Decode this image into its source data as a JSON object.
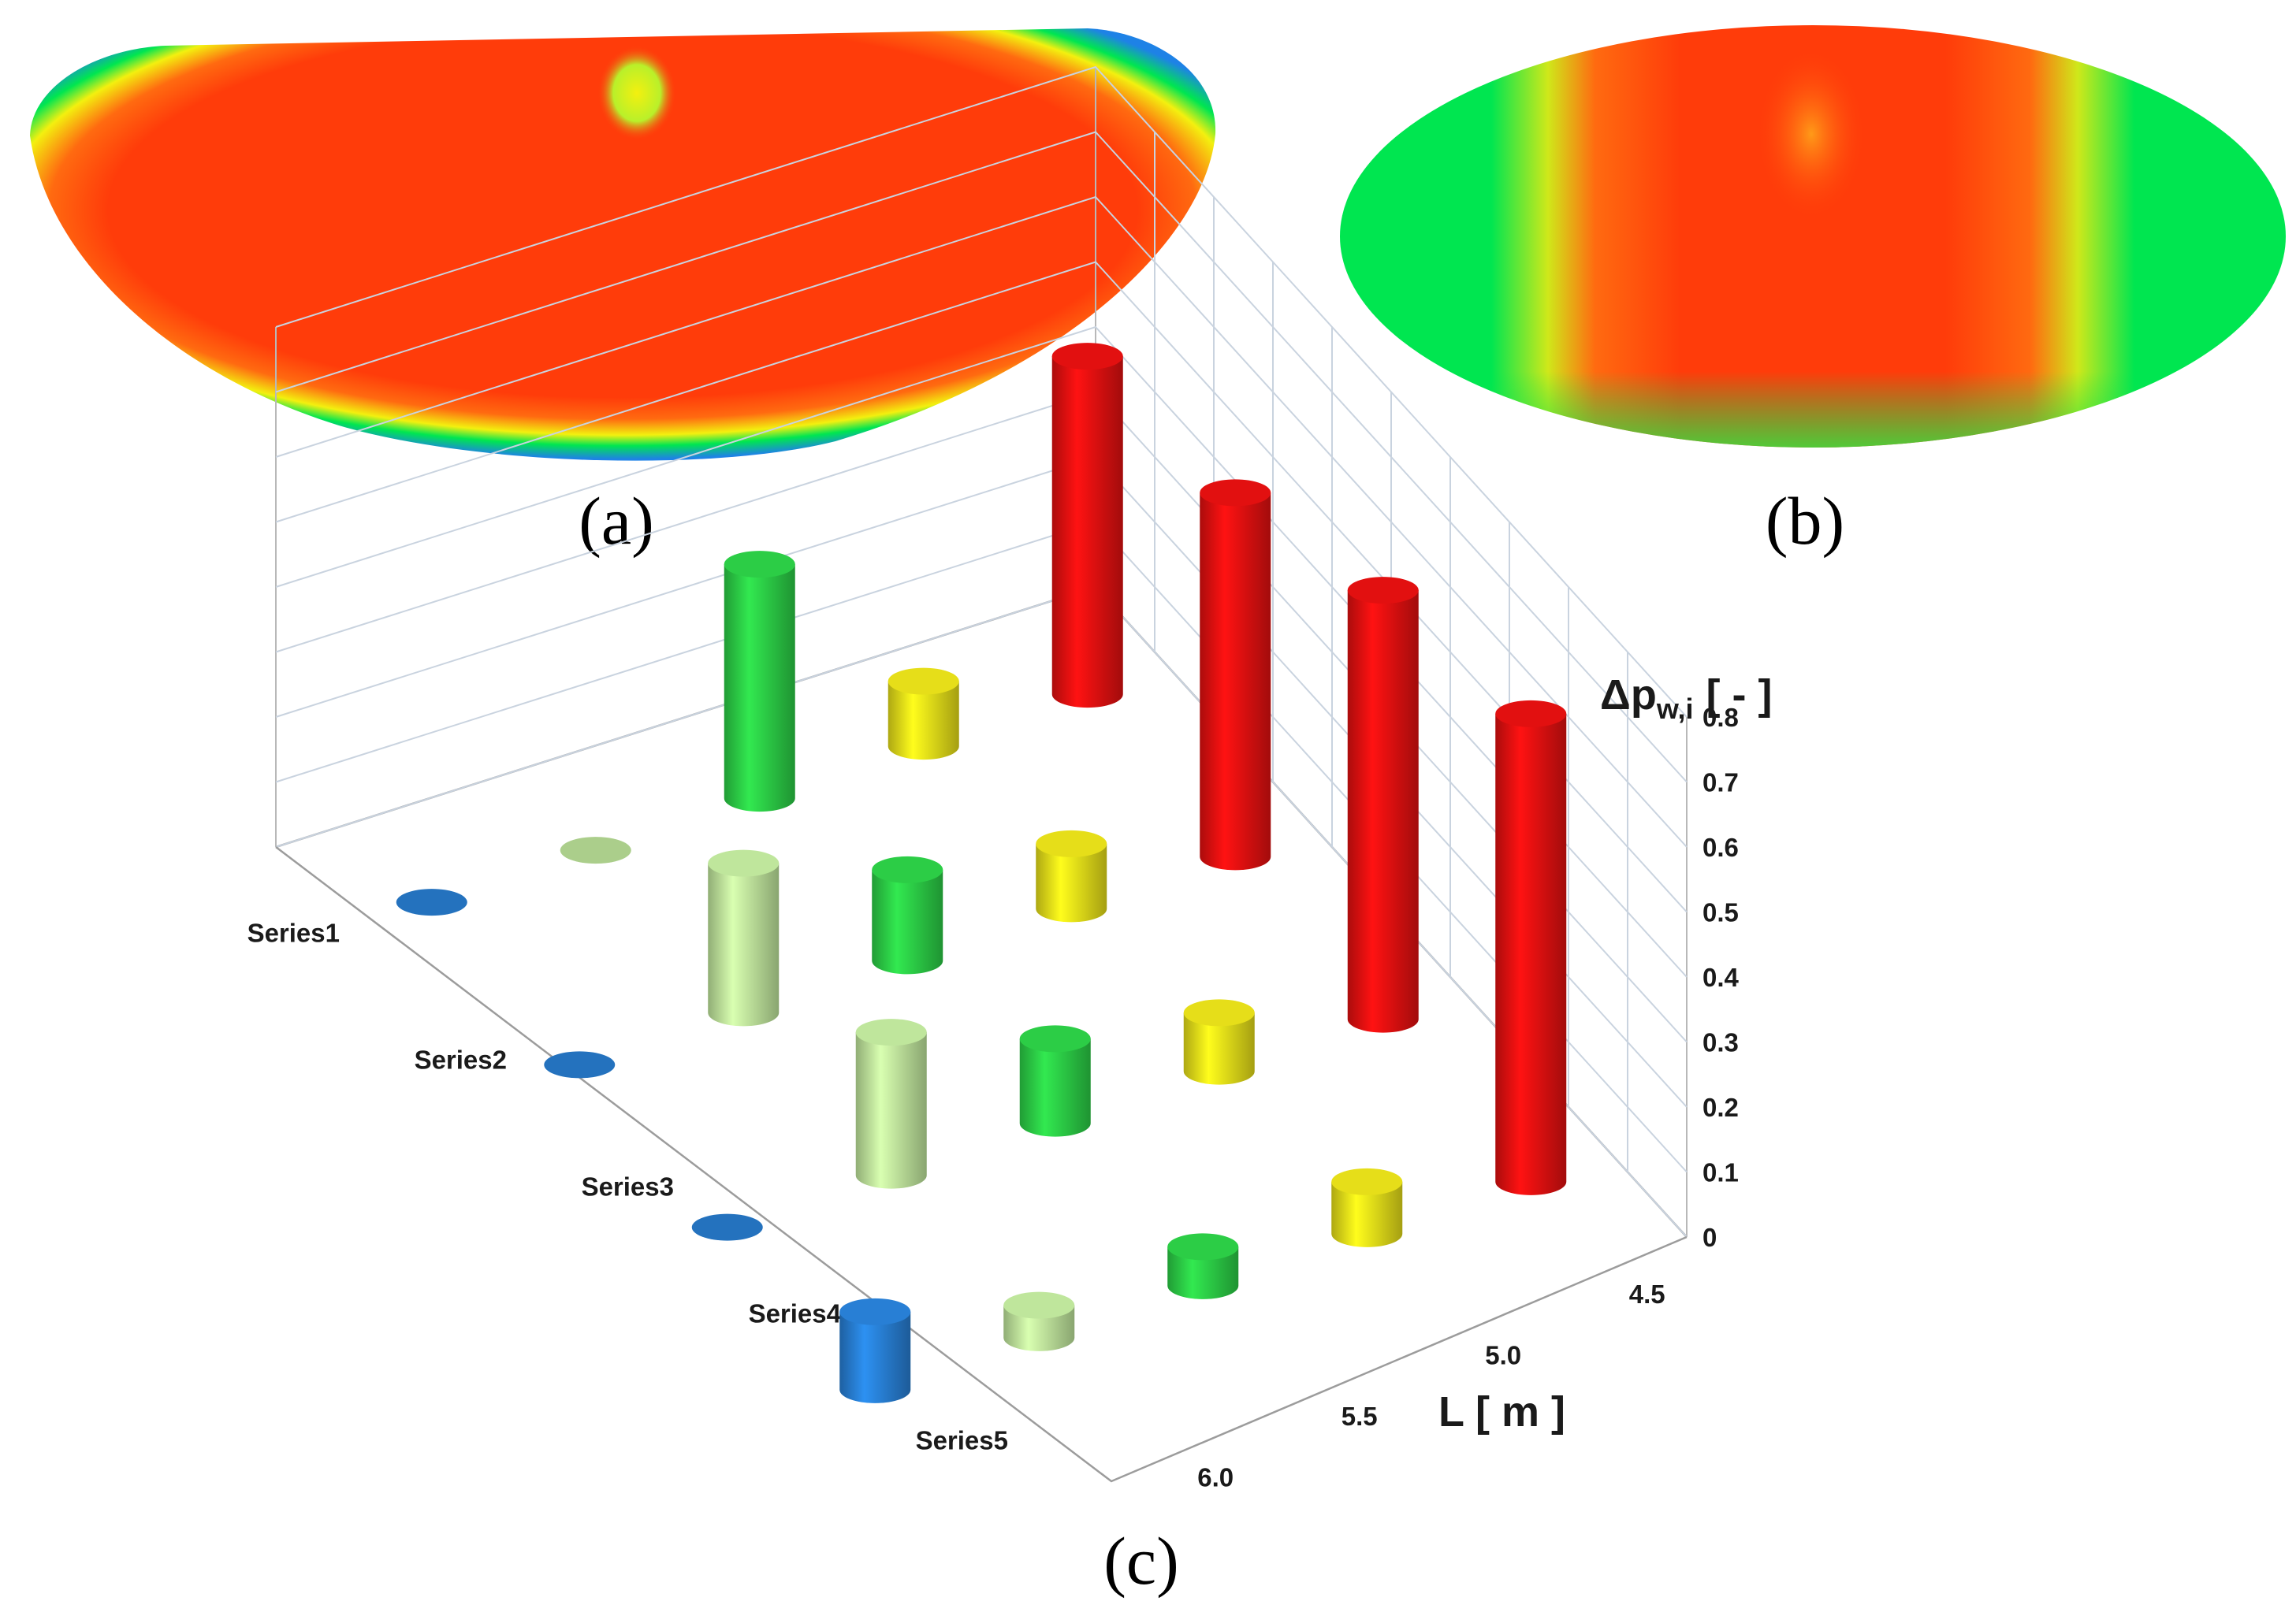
{
  "panels": {
    "a": {
      "label": "(a)"
    },
    "b": {
      "label": "(b)"
    },
    "c": {
      "label": "(c)"
    }
  },
  "colors": {
    "map_red": "#ff3c0a",
    "map_orange": "#ff6a10",
    "map_yellow": "#f3f00f",
    "map_green": "#00e650",
    "map_blue": "#1e82e6",
    "series1": "#ee1111",
    "series2": "#f2ea1a",
    "series3": "#2ed84a",
    "series4": "#c9f2a4",
    "series5": "#2a86e0"
  },
  "chart_data": {
    "type": "bar",
    "subtype": "3d-cylinder",
    "zlabel_main": "Δp",
    "zlabel_sub": "w,i",
    "zlabel_unit": "[ - ]",
    "ylabel": "L [ m ]",
    "zlim": [
      0,
      0.8
    ],
    "zticks": [
      "0",
      "0.1",
      "0.2",
      "0.3",
      "0.4",
      "0.5",
      "0.6",
      "0.7",
      "0.8"
    ],
    "categories": [
      "4.5",
      "5.0",
      "5.5",
      "6.0"
    ],
    "series": [
      {
        "name": "Series1",
        "values": [
          0.72,
          0.66,
          0.56,
          0.52
        ]
      },
      {
        "name": "Series2",
        "values": [
          0.08,
          0.09,
          0.1,
          0.1
        ]
      },
      {
        "name": "Series3",
        "values": [
          0.06,
          0.13,
          0.14,
          0.36
        ]
      },
      {
        "name": "Series4",
        "values": [
          0.05,
          0.22,
          0.23,
          0
        ]
      },
      {
        "name": "Series5",
        "values": [
          0.12,
          0,
          0,
          0
        ]
      }
    ],
    "grid": true
  }
}
